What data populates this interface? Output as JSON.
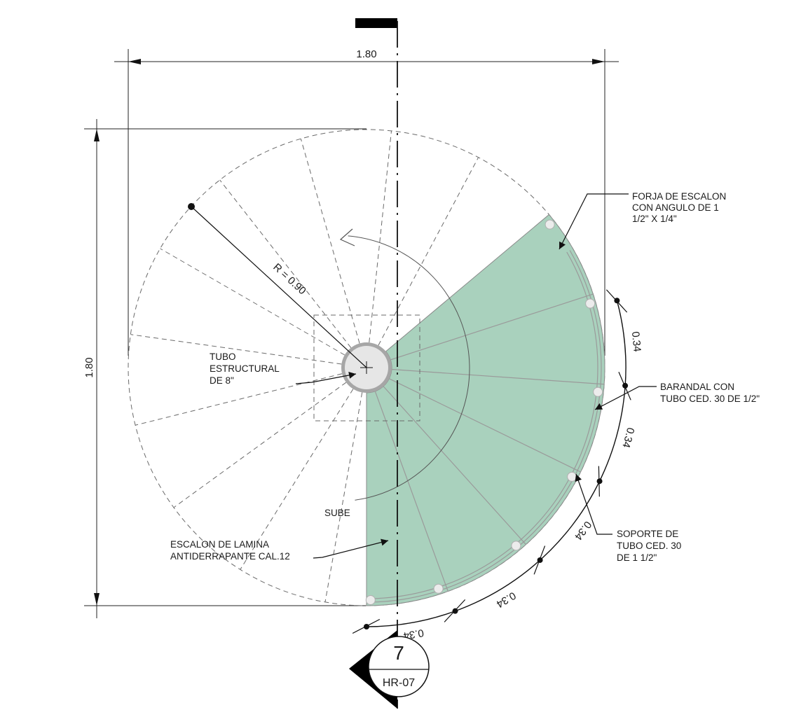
{
  "dimensions": {
    "width_label": "1.80",
    "height_label": "1.80",
    "radius_label": "R = 0.90",
    "arc_segments": [
      "0.34",
      "0.34",
      "0.34",
      "0.34",
      "0.34"
    ]
  },
  "annotations": {
    "forja": [
      "FORJA DE ESCALON",
      "CON ANGULO DE 1",
      "1/2\" X 1/4\""
    ],
    "tubo": [
      "TUBO",
      "ESTRUCTURAL",
      "DE 8\""
    ],
    "barandal": [
      "BARANDAL CON",
      "TUBO CED. 30 DE 1/2\""
    ],
    "soporte": [
      "SOPORTE DE",
      "TUBO CED. 30",
      "DE 1 1/2\""
    ],
    "escalon": [
      "ESCALON DE LAMINA",
      "ANTIDERRAPANTE CAL.12"
    ],
    "sube": "SUBE"
  },
  "section_marker": {
    "number": "7",
    "sheet": "HR-07"
  },
  "colors": {
    "step_fill": "#a9d1bd",
    "column_fill": "#e6e6e6",
    "column_stroke": "#a6a6a6"
  }
}
